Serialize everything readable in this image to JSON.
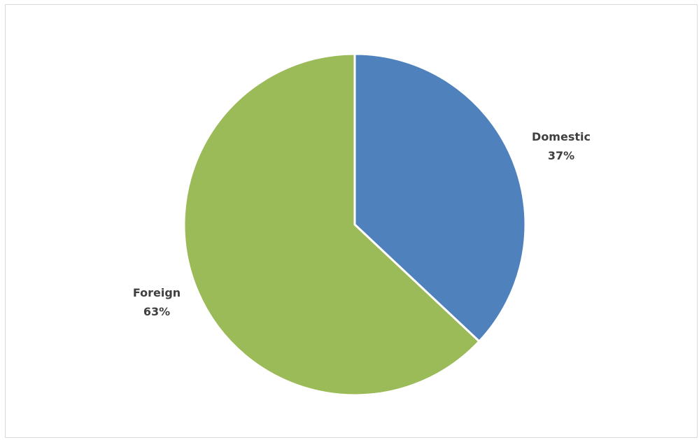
{
  "chart_data": {
    "type": "pie",
    "title": "",
    "slices": [
      {
        "label": "Domestic",
        "value": 37,
        "value_label": "37%",
        "color": "#4f81bd"
      },
      {
        "label": "Foreign",
        "value": 63,
        "value_label": "63%",
        "color": "#9bbb59"
      }
    ],
    "start_angle": "12 o'clock",
    "direction": "clockwise",
    "legend": "none",
    "label_position": "outside"
  }
}
